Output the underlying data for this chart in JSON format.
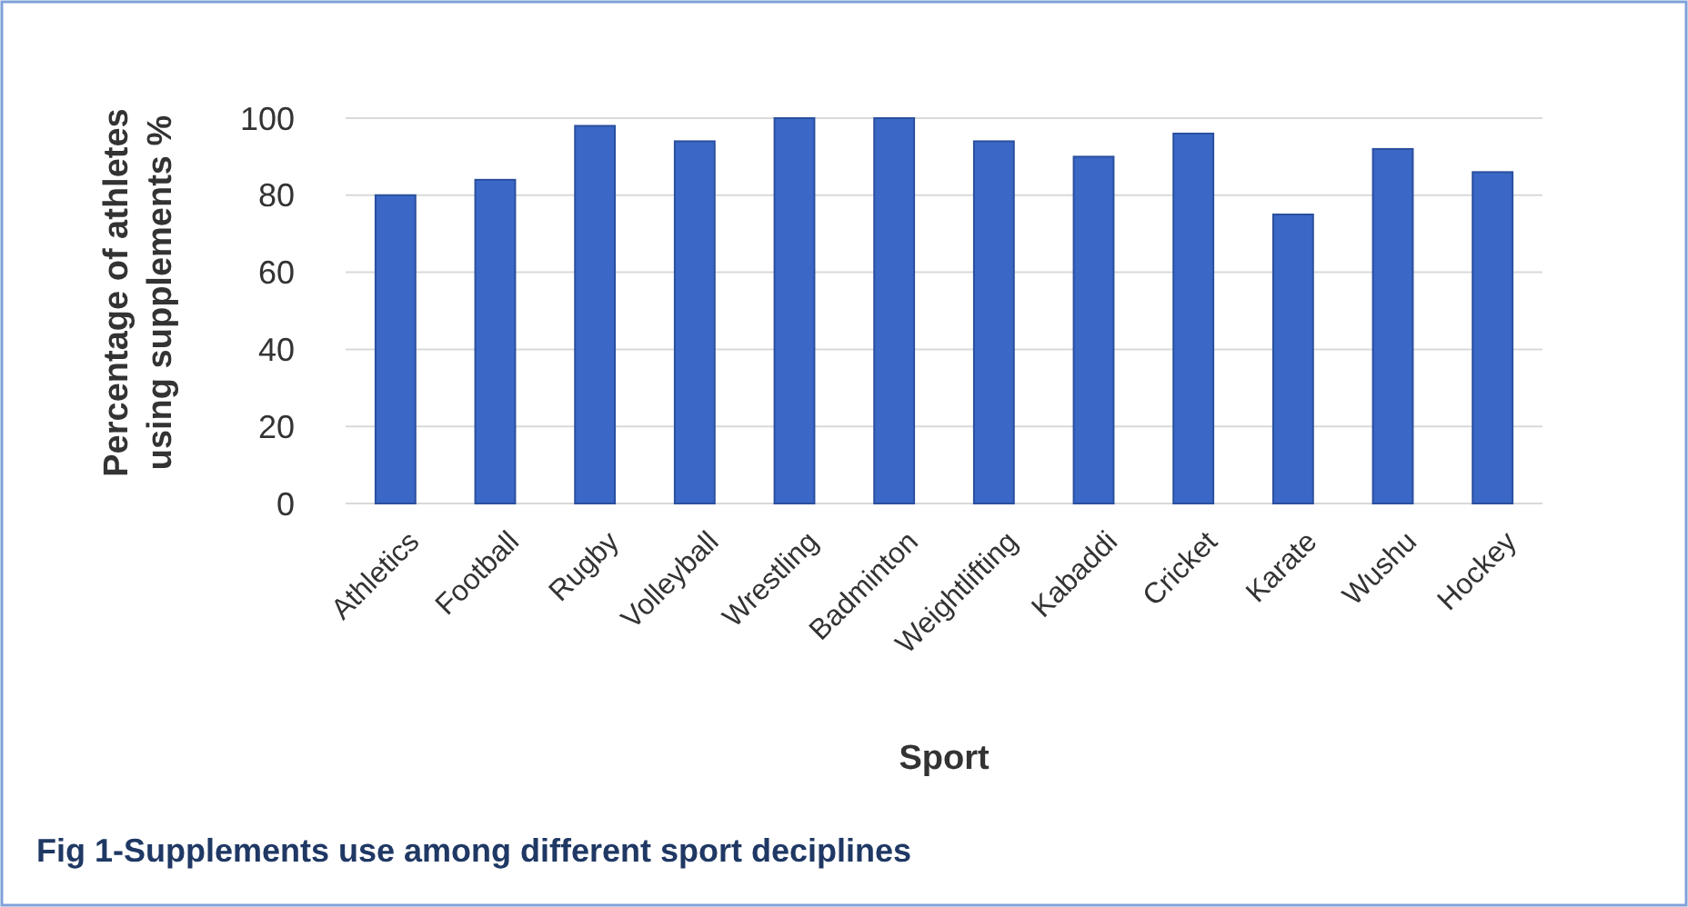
{
  "chart_data": {
    "type": "bar",
    "xlabel": "Sport",
    "ylabel": "Percentage of athletes using supplements %",
    "categories": [
      "Athletics",
      "Football",
      "Rugby",
      "Volleyball",
      "Wrestling",
      "Badminton",
      "Weightlifting",
      "Kabaddi",
      "Cricket",
      "Karate",
      "Wushu",
      "Hockey"
    ],
    "values": [
      80,
      84,
      98,
      94,
      100,
      100,
      94,
      90,
      96,
      75,
      92,
      86
    ],
    "color": "#3b68c6",
    "ylim": [
      0,
      100
    ],
    "yticks": [
      0,
      20,
      40,
      60,
      80,
      100
    ],
    "grid": "y",
    "annotations": [
      "Fig 1-Supplements use among different sport deciplines"
    ]
  }
}
